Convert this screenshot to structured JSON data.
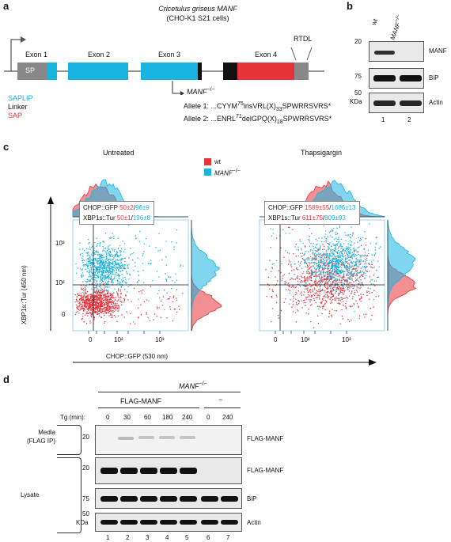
{
  "panels": {
    "a": "a",
    "b": "b",
    "c": "c",
    "d": "d"
  },
  "panel_a": {
    "title_line1_species": "Cricetulus griseus",
    "title_line1_gene": "MANF",
    "title_line2": "(CHO-K1 S21 cells)",
    "exons": [
      "Exon 1",
      "Exon 2",
      "Exon 3",
      "Exon 4"
    ],
    "sp_label": "SP",
    "rtdl_label": "RTDL",
    "legend": [
      {
        "text": "SAPLIP",
        "color": "#18b4e0"
      },
      {
        "text": "Linker",
        "color": "#111111"
      },
      {
        "text": "SAP",
        "color": "#e8333b"
      }
    ],
    "knockout_label": "MANF",
    "knockout_sup": "−/−",
    "allele1": {
      "prefix": "Allele 1: ...CYYM",
      "sup": "75",
      "mid": "insVRL(X)",
      "sub": "33",
      "suffix": "SPWRRSVRS*"
    },
    "allele2": {
      "prefix": "Allele 2: ...ENRL",
      "sup": "71",
      "mid": "delGPQ(X)",
      "sub": "18",
      "suffix": "SPWRRSVRS*"
    },
    "colors": {
      "saplip": "#18b4e0",
      "linker": "#111111",
      "sap": "#e8333b",
      "grey": "#888888"
    }
  },
  "panel_b": {
    "lanes_header": [
      "wt",
      "MANF"
    ],
    "lane_header_sup": "−/−",
    "rows": [
      {
        "label": "MANF",
        "marker": "20"
      },
      {
        "label": "BiP",
        "marker": "75"
      },
      {
        "label": "Actin",
        "marker": "50"
      }
    ],
    "kda": "KDa",
    "lane_numbers": [
      "1",
      "2"
    ]
  },
  "panel_c": {
    "titles": [
      "Untreated",
      "Thapsigargin"
    ],
    "legend": [
      {
        "text": "wt",
        "color": "#e8333b"
      },
      {
        "text": "MANF",
        "sup": "−/−",
        "color": "#18b4e0"
      }
    ],
    "ylabel": "XBP1s::Tur (450 nm)",
    "xlabel": "CHOP::GFP (530 nm)",
    "y_ticks": [
      "10³",
      "10²",
      "0"
    ],
    "x_ticks": [
      "0",
      "10²",
      "10³"
    ],
    "stats": [
      {
        "chop_label": "CHOP::GFP",
        "chop_wt": "50±2",
        "chop_ko": "96±9",
        "xbp_label": "XBP1s::Tur",
        "xbp_wt": "50±1",
        "xbp_ko": "196±8"
      },
      {
        "chop_label": "CHOP::GFP",
        "chop_wt": "1589±55",
        "chop_ko": "1686±13",
        "xbp_label": "XBP1s::Tur",
        "xbp_wt": "611±75",
        "xbp_ko": "809±93"
      }
    ]
  },
  "panel_d": {
    "genotype": "MANF",
    "genotype_sup": "−/−",
    "construct": "FLAG-MANF",
    "dash": "−",
    "tg_label": "Tg (min):",
    "tg_values": [
      "0",
      "30",
      "60",
      "180",
      "240",
      "0",
      "240"
    ],
    "rows": [
      {
        "section": "Media\n(FLAG IP)",
        "marker": "20",
        "label": "FLAG-MANF"
      },
      {
        "section": "Lysate",
        "marker": "20",
        "label": "FLAG-MANF"
      },
      {
        "section": "",
        "marker": "75",
        "label": "BiP"
      },
      {
        "section": "",
        "marker": "50",
        "label": "Actin"
      }
    ],
    "media_section": [
      "Media",
      "(FLAG IP)"
    ],
    "lysate_section": "Lysate",
    "kda": "KDa",
    "lane_numbers": [
      "1",
      "2",
      "3",
      "4",
      "5",
      "6",
      "7"
    ]
  }
}
